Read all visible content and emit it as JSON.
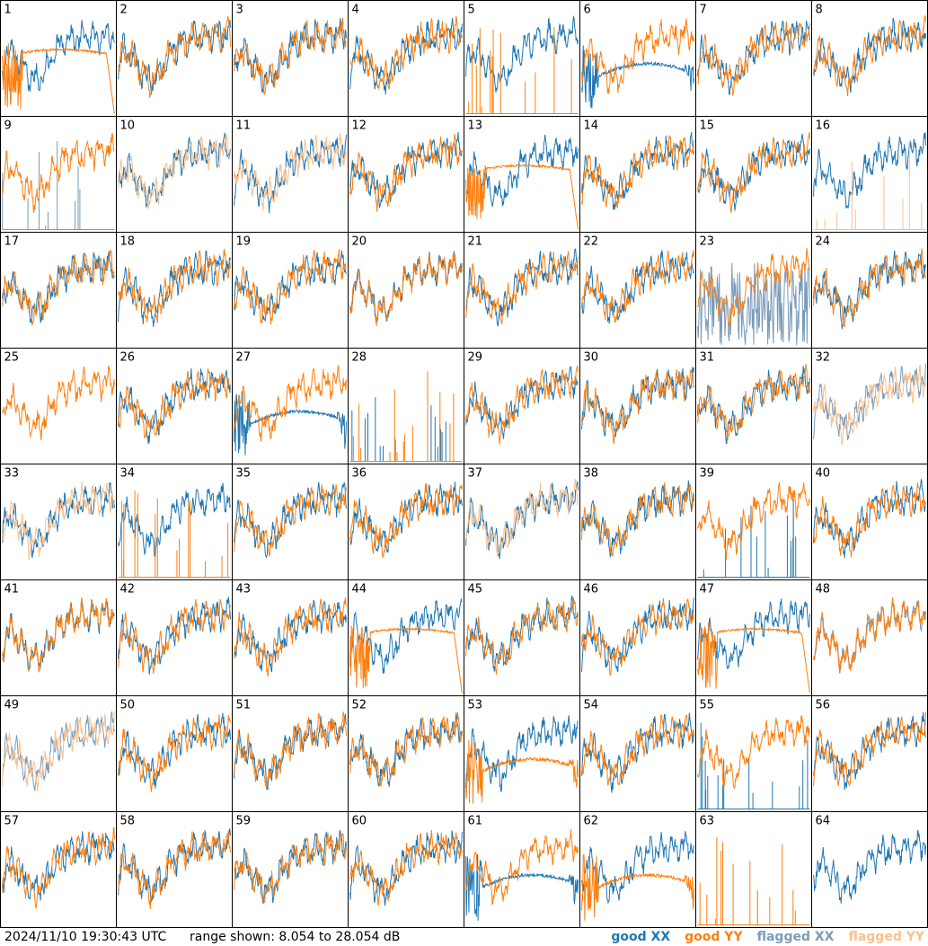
{
  "timestamp": "2024/11/10 19:30:43 UTC",
  "range_text": "range shown: 8.054 to 28.054 dB",
  "legend": [
    {
      "label": "good XX",
      "color": "#1f77b4"
    },
    {
      "label": "good YY",
      "color": "#ff7f0e"
    },
    {
      "label": "flagged XX",
      "color": "#7a9bb8"
    },
    {
      "label": "flagged YY",
      "color": "#fbbf8c"
    }
  ],
  "chart_data": {
    "type": "line",
    "layout": "small multiples 8x8",
    "ylim": [
      8.054,
      28.054
    ],
    "units": "dB",
    "series_names": [
      "good XX",
      "good YY",
      "flagged XX",
      "flagged YY"
    ],
    "panels": [
      {
        "id": "1",
        "xx": "good",
        "yy": "dropoff"
      },
      {
        "id": "2",
        "xx": "good",
        "yy": "good"
      },
      {
        "id": "3",
        "xx": "good",
        "yy": "good"
      },
      {
        "id": "4",
        "xx": "good",
        "yy": "good"
      },
      {
        "id": "5",
        "xx": "good",
        "yy": "spiky"
      },
      {
        "id": "6",
        "xx": "sagging",
        "yy": "good"
      },
      {
        "id": "7",
        "xx": "good",
        "yy": "good"
      },
      {
        "id": "8",
        "xx": "good",
        "yy": "good"
      },
      {
        "id": "9",
        "xx": "flagged_spiky",
        "yy": "good"
      },
      {
        "id": "10",
        "xx": "good",
        "yy": "flagged"
      },
      {
        "id": "11",
        "xx": "good",
        "yy": "flagged"
      },
      {
        "id": "12",
        "xx": "good",
        "yy": "good"
      },
      {
        "id": "13",
        "xx": "good",
        "yy": "dropoff"
      },
      {
        "id": "14",
        "xx": "good",
        "yy": "good"
      },
      {
        "id": "15",
        "xx": "good",
        "yy": "good"
      },
      {
        "id": "16",
        "xx": "good",
        "yy": "flagged_spiky"
      },
      {
        "id": "17",
        "xx": "good",
        "yy": "good"
      },
      {
        "id": "18",
        "xx": "good",
        "yy": "good"
      },
      {
        "id": "19",
        "xx": "good",
        "yy": "good"
      },
      {
        "id": "20",
        "xx": "good",
        "yy": "good"
      },
      {
        "id": "21",
        "xx": "good",
        "yy": "good"
      },
      {
        "id": "22",
        "xx": "good",
        "yy": "good"
      },
      {
        "id": "23",
        "xx": "flagged_noisy",
        "yy": "good"
      },
      {
        "id": "24",
        "xx": "good",
        "yy": "good"
      },
      {
        "id": "25",
        "xx": "none",
        "yy": "good"
      },
      {
        "id": "26",
        "xx": "good",
        "yy": "good"
      },
      {
        "id": "27",
        "xx": "sagging",
        "yy": "good"
      },
      {
        "id": "28",
        "xx": "spiky",
        "yy": "spiky"
      },
      {
        "id": "29",
        "xx": "good",
        "yy": "good"
      },
      {
        "id": "30",
        "xx": "good",
        "yy": "good"
      },
      {
        "id": "31",
        "xx": "good",
        "yy": "good"
      },
      {
        "id": "32",
        "xx": "flagged",
        "yy": "flagged"
      },
      {
        "id": "33",
        "xx": "good",
        "yy": "flagged"
      },
      {
        "id": "34",
        "xx": "good",
        "yy": "spiky"
      },
      {
        "id": "35",
        "xx": "good",
        "yy": "good"
      },
      {
        "id": "36",
        "xx": "good",
        "yy": "good"
      },
      {
        "id": "37",
        "xx": "good",
        "yy": "flagged"
      },
      {
        "id": "38",
        "xx": "good",
        "yy": "good"
      },
      {
        "id": "39",
        "xx": "spiky",
        "yy": "good"
      },
      {
        "id": "40",
        "xx": "good",
        "yy": "good"
      },
      {
        "id": "41",
        "xx": "good",
        "yy": "good"
      },
      {
        "id": "42",
        "xx": "good",
        "yy": "good"
      },
      {
        "id": "43",
        "xx": "good",
        "yy": "good"
      },
      {
        "id": "44",
        "xx": "good",
        "yy": "dropoff"
      },
      {
        "id": "45",
        "xx": "good",
        "yy": "good"
      },
      {
        "id": "46",
        "xx": "good",
        "yy": "good"
      },
      {
        "id": "47",
        "xx": "good",
        "yy": "dropoff"
      },
      {
        "id": "48",
        "xx": "flagged",
        "yy": "good"
      },
      {
        "id": "49",
        "xx": "flagged",
        "yy": "flagged"
      },
      {
        "id": "50",
        "xx": "good",
        "yy": "good"
      },
      {
        "id": "51",
        "xx": "good",
        "yy": "good"
      },
      {
        "id": "52",
        "xx": "good",
        "yy": "good"
      },
      {
        "id": "53",
        "xx": "good",
        "yy": "sagging"
      },
      {
        "id": "54",
        "xx": "good",
        "yy": "good"
      },
      {
        "id": "55",
        "xx": "spiky",
        "yy": "good"
      },
      {
        "id": "56",
        "xx": "good",
        "yy": "good"
      },
      {
        "id": "57",
        "xx": "good",
        "yy": "good"
      },
      {
        "id": "58",
        "xx": "good",
        "yy": "good"
      },
      {
        "id": "59",
        "xx": "good",
        "yy": "good"
      },
      {
        "id": "60",
        "xx": "good",
        "yy": "good"
      },
      {
        "id": "61",
        "xx": "sagging",
        "yy": "good"
      },
      {
        "id": "62",
        "xx": "good",
        "yy": "sagging"
      },
      {
        "id": "63",
        "xx": "none",
        "yy": "spiky"
      },
      {
        "id": "64",
        "xx": "good",
        "yy": "none"
      }
    ]
  }
}
